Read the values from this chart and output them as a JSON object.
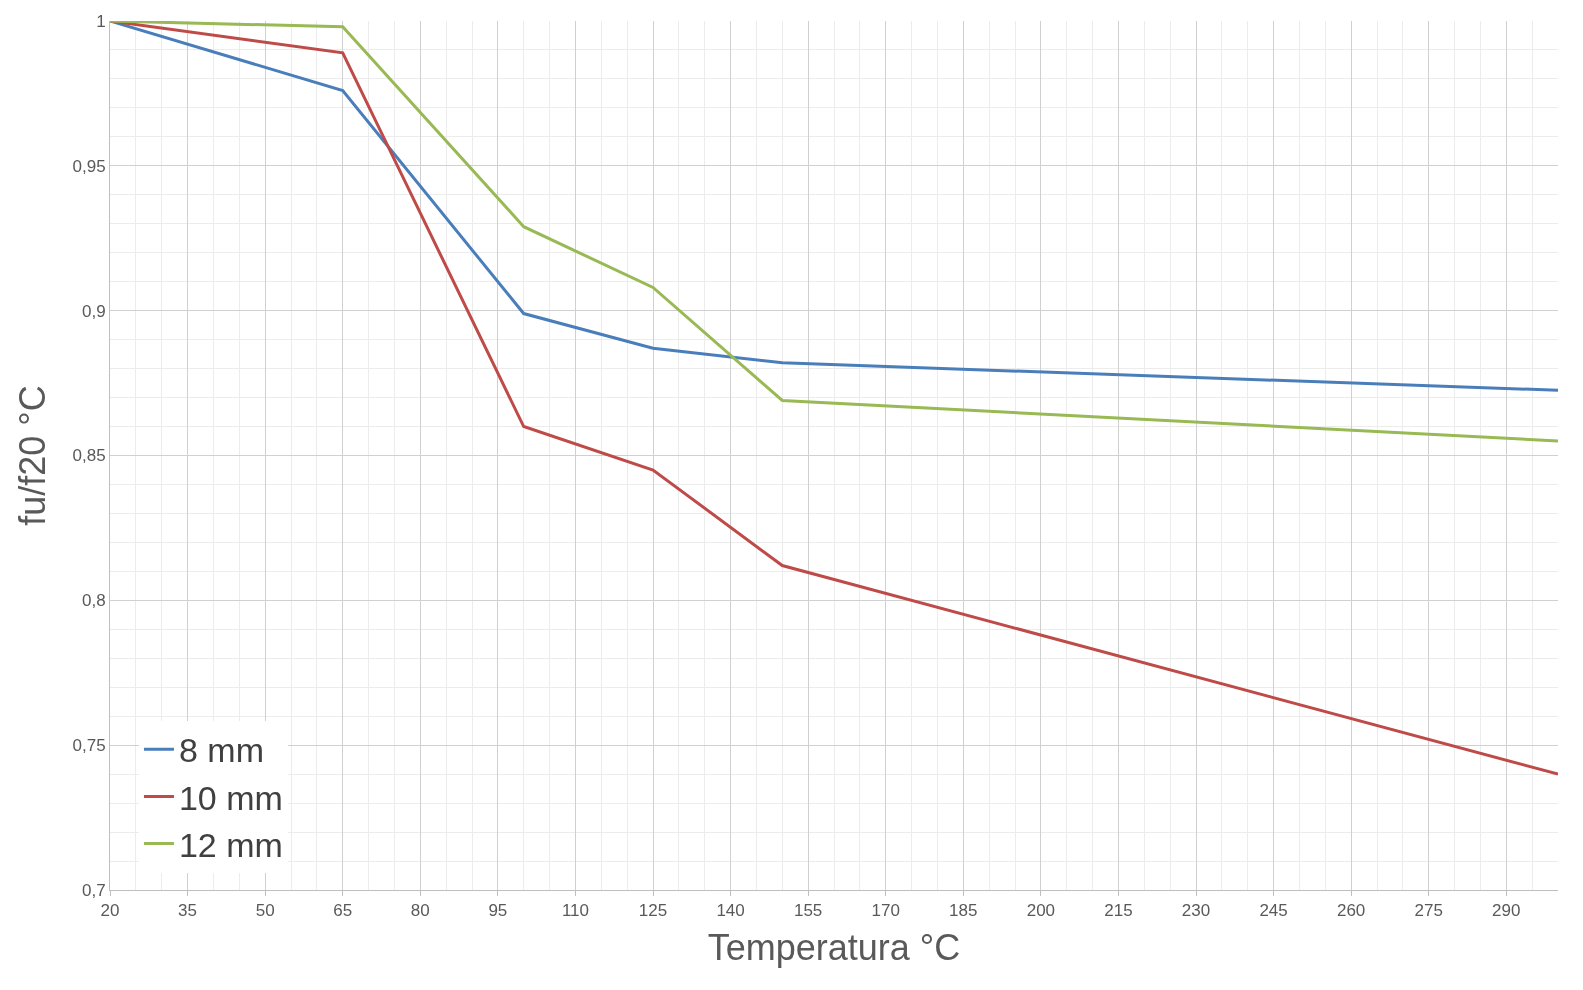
{
  "chart_data": {
    "type": "line",
    "xlabel": "Temperatura °C",
    "ylabel": "fu/f20 °C",
    "x": [
      20,
      65,
      100,
      125,
      150,
      300
    ],
    "series": [
      {
        "name": "8 mm",
        "color": "#4a7ebb",
        "values": [
          1,
          0.976,
          0.899,
          0.887,
          0.882,
          0.8725
        ]
      },
      {
        "name": "10 mm",
        "color": "#be4b48",
        "values": [
          1,
          0.989,
          0.86,
          0.845,
          0.812,
          0.74
        ]
      },
      {
        "name": "12 mm",
        "color": "#98b954",
        "values": [
          1,
          0.998,
          0.929,
          0.908,
          0.869,
          0.855
        ]
      }
    ],
    "xlim": [
      20,
      300
    ],
    "xticks": [
      20,
      35,
      50,
      65,
      80,
      95,
      110,
      125,
      140,
      155,
      170,
      185,
      200,
      215,
      230,
      245,
      260,
      275,
      290
    ],
    "ylim": [
      0.7,
      1
    ],
    "yticks": [
      {
        "value": 0.7,
        "label": "0,7"
      },
      {
        "value": 0.75,
        "label": "0,75"
      },
      {
        "value": 0.8,
        "label": "0,8"
      },
      {
        "value": 0.85,
        "label": "0,85"
      },
      {
        "value": 0.9,
        "label": "0,9"
      },
      {
        "value": 0.95,
        "label": "0,95"
      },
      {
        "value": 1,
        "label": "1"
      }
    ],
    "grid": true,
    "legend": "bottom left",
    "marker": "none",
    "line_style": "solid"
  }
}
